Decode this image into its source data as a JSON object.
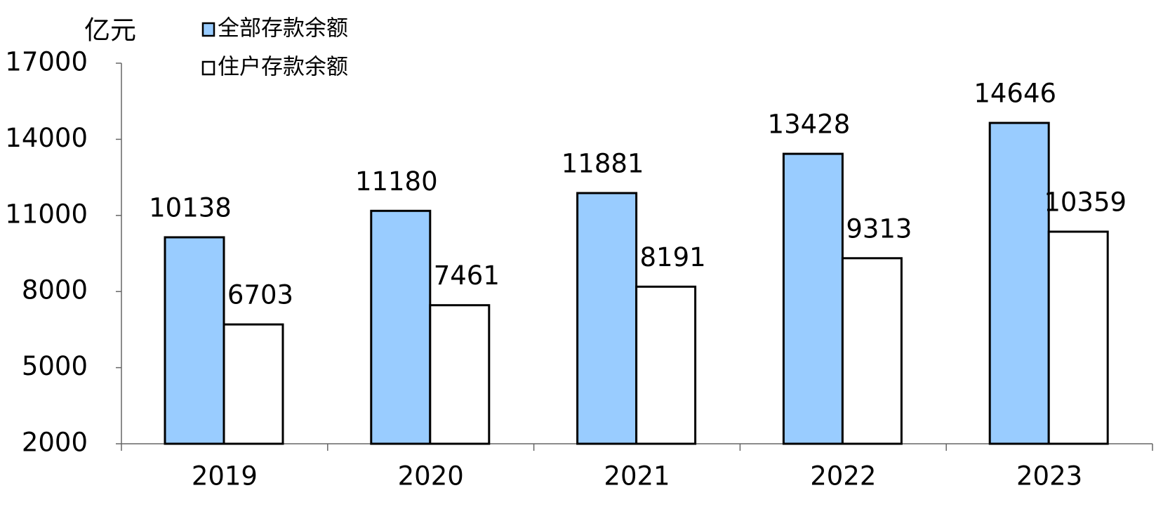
{
  "chart_data": {
    "type": "bar",
    "y_label": "亿元",
    "categories": [
      "2019",
      "2020",
      "2021",
      "2022",
      "2023"
    ],
    "series": [
      {
        "name": "全部存款余额",
        "color": "#99ccff",
        "values": [
          10138,
          11180,
          11881,
          13428,
          14646
        ]
      },
      {
        "name": "住户存款余额",
        "color": "#ffffff",
        "values": [
          6703,
          7461,
          8191,
          9313,
          10359
        ]
      }
    ],
    "ylim": [
      2000,
      17000
    ],
    "yticks": [
      2000,
      5000,
      8000,
      11000,
      14000,
      17000
    ],
    "show_value_labels": true
  }
}
